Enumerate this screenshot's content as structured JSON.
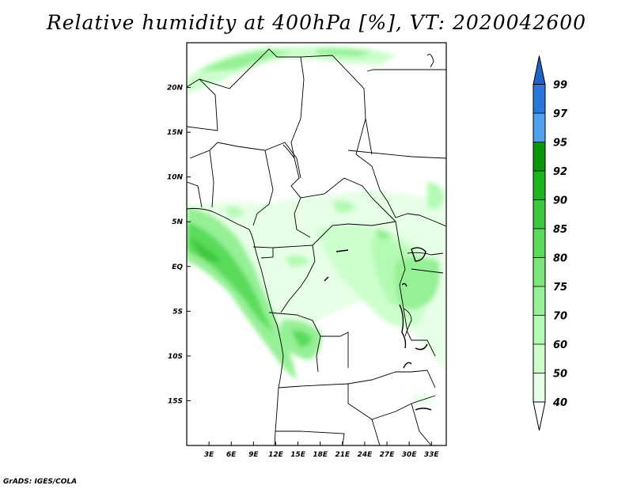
{
  "title": "Relative humidity at 400hPa [%], VT: 2020042600",
  "credit": "GrADS: IGES/COLA",
  "map": {
    "lon_range": [
      0,
      35
    ],
    "lat_range": [
      -20,
      25
    ],
    "lon_ticks": [
      {
        "value": 3,
        "label": "3E"
      },
      {
        "value": 6,
        "label": "6E"
      },
      {
        "value": 9,
        "label": "9E"
      },
      {
        "value": 12,
        "label": "12E"
      },
      {
        "value": 15,
        "label": "15E"
      },
      {
        "value": 18,
        "label": "18E"
      },
      {
        "value": 21,
        "label": "21E"
      },
      {
        "value": 24,
        "label": "24E"
      },
      {
        "value": 27,
        "label": "27E"
      },
      {
        "value": 30,
        "label": "30E"
      },
      {
        "value": 33,
        "label": "33E"
      }
    ],
    "lat_ticks": [
      {
        "value": 20,
        "label": "20N"
      },
      {
        "value": 15,
        "label": "15N"
      },
      {
        "value": 10,
        "label": "10N"
      },
      {
        "value": 5,
        "label": "5N"
      },
      {
        "value": 0,
        "label": "EQ"
      },
      {
        "value": -5,
        "label": "5S"
      },
      {
        "value": -10,
        "label": "10S"
      },
      {
        "value": -15,
        "label": "15S"
      }
    ]
  },
  "colorbar": {
    "levels": [
      "40",
      "50",
      "60",
      "70",
      "75",
      "80",
      "85",
      "90",
      "92",
      "95",
      "97",
      "99"
    ],
    "colors": [
      "#ffffff",
      "#e6ffe6",
      "#ccffcc",
      "#b4fab4",
      "#96f096",
      "#78e678",
      "#5adc5a",
      "#3cc83c",
      "#1eb41e",
      "#0a960a",
      "#50a0f0",
      "#2878dc",
      "#1e64c8"
    ]
  }
}
